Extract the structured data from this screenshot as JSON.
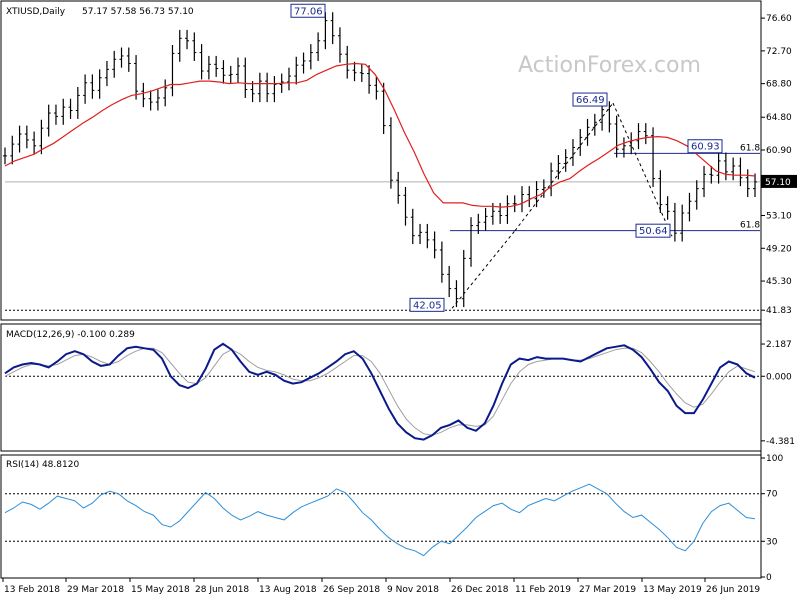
{
  "header": {
    "symbol": "XTIUSD,Daily",
    "ohlc": "57.17 57.58 56.73 57.10"
  },
  "watermark": "ActionForex.com",
  "colors": {
    "candle": "#000000",
    "ma": "#e02020",
    "macd_main": "#0a1a8c",
    "macd_signal": "#a0a0a0",
    "rsi": "#2f8fd8",
    "label_border": "#1b2a8f",
    "current_price_bg": "#000000"
  },
  "chart_data": [
    {
      "type": "candlestick",
      "title": "XTIUSD,Daily",
      "y_ticks": [
        "76.60",
        "72.70",
        "68.80",
        "64.80",
        "60.90",
        "57.10",
        "53.10",
        "49.20",
        "45.30",
        "41.83"
      ],
      "ylim": [
        40.9,
        78.4
      ],
      "current_price": "57.10",
      "close": [
        60.2,
        61.6,
        62.8,
        62.1,
        61.4,
        63.5,
        65.3,
        64.9,
        66.0,
        65.6,
        67.4,
        68.9,
        68.0,
        69.5,
        70.5,
        71.7,
        72.1,
        71.2,
        67.9,
        67.0,
        66.6,
        67.1,
        68.3,
        72.4,
        74.2,
        73.9,
        72.5,
        70.3,
        71.1,
        70.6,
        69.8,
        69.9,
        70.9,
        68.1,
        67.6,
        69.1,
        67.6,
        68.7,
        69.0,
        69.7,
        71.0,
        71.5,
        72.5,
        73.9,
        76.3,
        74.5,
        72.3,
        70.4,
        70.1,
        70.0,
        68.6,
        67.9,
        63.8,
        57.3,
        55.5,
        52.9,
        50.7,
        51.1,
        50.2,
        49.0,
        46.1,
        44.4,
        43.2,
        48.0,
        51.9,
        52.3,
        53.0,
        53.6,
        53.1,
        54.5,
        54.5,
        55.6,
        55.1,
        56.2,
        56.4,
        58.4,
        59.3,
        60.0,
        61.2,
        62.4,
        63.6,
        64.2,
        65.7,
        64.0,
        61.0,
        61.4,
        62.0,
        63.1,
        62.6,
        57.5,
        54.4,
        53.6,
        51.0,
        53.4,
        54.8,
        56.3,
        58.0,
        57.9,
        59.6,
        58.3,
        59.0,
        57.6,
        56.3,
        57.1
      ],
      "ma_values": [
        59.0,
        59.6,
        60.0,
        60.4,
        61.1,
        61.7,
        62.5,
        63.3,
        64.1,
        64.8,
        65.6,
        66.3,
        66.9,
        67.4,
        67.6,
        67.9,
        68.3,
        68.7,
        68.7,
        68.9,
        69.1,
        69.1,
        69.0,
        68.8,
        68.9,
        68.8,
        68.8,
        68.8,
        68.8,
        68.9,
        68.9,
        69.2,
        69.9,
        70.4,
        70.9,
        71.1,
        71.2,
        71.1,
        69.9,
        68.0,
        65.6,
        63.0,
        60.7,
        58.1,
        55.8,
        54.6,
        54.6,
        54.6,
        54.3,
        54.2,
        54.2,
        54.1,
        54.2,
        54.5,
        55.1,
        55.6,
        56.5,
        57.1,
        57.5,
        58.4,
        59.2,
        59.9,
        60.7,
        61.5,
        61.9,
        62.2,
        62.4,
        62.5,
        62.4,
        62.0,
        61.4,
        60.4,
        59.4,
        58.4,
        58.0,
        57.9,
        57.9,
        57.8
      ],
      "annotations": [
        "77.06",
        "66.49",
        "60.93",
        "50.64",
        "42.05"
      ],
      "fib_labels": [
        "61.8",
        "61.8"
      ],
      "x_ticks": [
        "13 Feb 2018",
        "29 Mar 2018",
        "15 May 2018",
        "28 Jun 2018",
        "13 Aug 2018",
        "26 Sep 2018",
        "9 Nov 2018",
        "26 Dec 2018",
        "11 Feb 2019",
        "27 Mar 2019",
        "13 May 2019",
        "26 Jun 2019"
      ]
    },
    {
      "type": "line",
      "title": "MACD(12,26,9) -0.100 0.289",
      "y_ticks": [
        "2.187",
        "0.000",
        "-4.381"
      ],
      "ylim": [
        -4.8,
        2.8
      ],
      "series": [
        {
          "values": [
            0.2,
            0.6,
            0.8,
            0.9,
            0.8,
            0.6,
            1.0,
            1.5,
            1.7,
            1.5,
            1.0,
            0.7,
            0.8,
            1.4,
            1.9,
            2.0,
            1.9,
            1.8,
            1.2,
            0.0,
            -0.6,
            -0.8,
            -0.5,
            0.5,
            1.8,
            2.2,
            1.8,
            1.0,
            0.3,
            0.1,
            0.3,
            0.1,
            -0.3,
            -0.5,
            -0.4,
            -0.1,
            0.2,
            0.6,
            1.0,
            1.5,
            1.7,
            1.2,
            0.2,
            -1.0,
            -2.2,
            -3.2,
            -3.8,
            -4.2,
            -4.3,
            -4.0,
            -3.5,
            -3.3,
            -3.0,
            -3.5,
            -3.7,
            -3.2,
            -2.0,
            -0.5,
            0.8,
            1.2,
            1.1,
            1.3,
            1.2,
            1.2,
            1.2,
            1.1,
            1.0,
            1.3,
            1.6,
            1.9,
            2.0,
            2.1,
            1.8,
            1.3,
            0.5,
            -0.4,
            -1.0,
            -2.0,
            -2.5,
            -2.5,
            -1.6,
            -0.5,
            0.6,
            1.0,
            0.8,
            0.2,
            -0.1
          ]
        },
        {
          "values": [
            0.0,
            0.3,
            0.6,
            0.8,
            0.8,
            0.7,
            0.8,
            1.1,
            1.4,
            1.5,
            1.3,
            1.0,
            0.8,
            1.0,
            1.4,
            1.7,
            1.9,
            1.9,
            1.6,
            0.9,
            0.2,
            -0.4,
            -0.5,
            -0.1,
            0.7,
            1.5,
            1.8,
            1.5,
            1.0,
            0.6,
            0.4,
            0.3,
            0.1,
            -0.2,
            -0.3,
            -0.3,
            -0.1,
            0.2,
            0.6,
            1.0,
            1.4,
            1.4,
            1.0,
            0.2,
            -0.9,
            -2.0,
            -2.9,
            -3.5,
            -3.9,
            -4.0,
            -3.8,
            -3.5,
            -3.3,
            -3.3,
            -3.4,
            -3.3,
            -2.7,
            -1.6,
            -0.5,
            0.3,
            0.8,
            1.0,
            1.1,
            1.2,
            1.2,
            1.1,
            1.1,
            1.2,
            1.4,
            1.6,
            1.8,
            1.9,
            1.9,
            1.6,
            1.0,
            0.3,
            -0.5,
            -1.2,
            -1.8,
            -2.1,
            -1.9,
            -1.2,
            -0.4,
            0.3,
            0.7,
            0.5,
            0.3
          ]
        }
      ]
    },
    {
      "type": "line",
      "title": "RSI(14) 48.8120",
      "y_ticks": [
        "100",
        "70",
        "30",
        "0"
      ],
      "ylim": [
        0,
        100
      ],
      "values": [
        54,
        58,
        63,
        61,
        57,
        62,
        68,
        66,
        64,
        58,
        62,
        69,
        72,
        70,
        64,
        60,
        55,
        52,
        44,
        42,
        47,
        55,
        63,
        71,
        66,
        58,
        52,
        48,
        51,
        55,
        52,
        50,
        48,
        54,
        59,
        62,
        65,
        68,
        74,
        71,
        63,
        54,
        48,
        40,
        33,
        28,
        24,
        22,
        18,
        25,
        30,
        28,
        35,
        42,
        50,
        55,
        60,
        62,
        57,
        54,
        60,
        63,
        66,
        64,
        68,
        72,
        75,
        78,
        74,
        70,
        62,
        55,
        50,
        52,
        46,
        40,
        33,
        25,
        22,
        30,
        45,
        55,
        60,
        62,
        56,
        50,
        49
      ]
    }
  ]
}
